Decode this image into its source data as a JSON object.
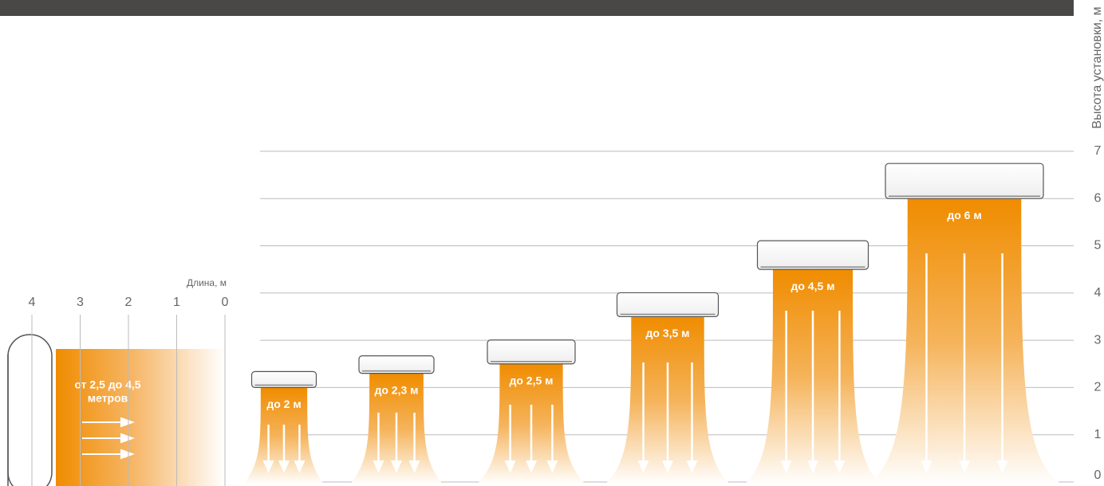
{
  "height_axis": {
    "title": "Высота установки, м",
    "ticks": [
      0,
      1,
      2,
      3,
      4,
      5,
      6,
      7
    ]
  },
  "length_axis": {
    "title": "Длина, м",
    "ticks": [
      4,
      3,
      2,
      1,
      0
    ]
  },
  "floor_unit": {
    "label_lines": [
      "от 2,5 до 4,5",
      "метров"
    ]
  },
  "wall_units": [
    {
      "label": "до 2 м",
      "height": 2
    },
    {
      "label": "до 2,3 м",
      "height": 2.3
    },
    {
      "label": "до 2,5 м",
      "height": 2.5
    },
    {
      "label": "до 3,5 м",
      "height": 3.5
    },
    {
      "label": "до 4,5 м",
      "height": 4.5
    },
    {
      "label": "до 6 м",
      "height": 6
    }
  ]
}
